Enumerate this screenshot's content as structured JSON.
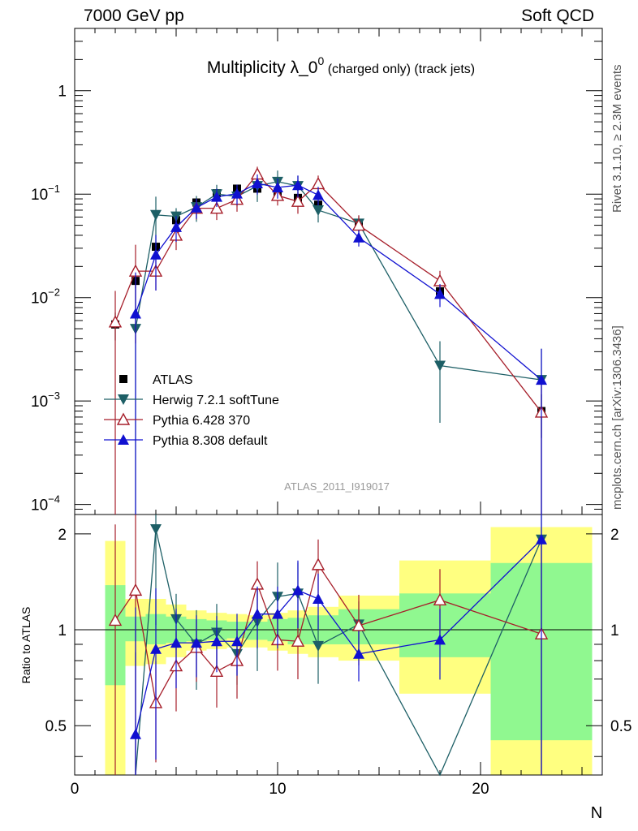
{
  "header": {
    "left": "7000 GeV pp",
    "right": "Soft QCD"
  },
  "side_text": {
    "rivet": "Rivet 3.1.10, ≥ 2.3M events",
    "mcplots": "mcplots.cern.ch [arXiv:1306.3436]"
  },
  "chart_data": {
    "type": "scatter",
    "title_main": "Multiplicity λ_0",
    "title_sup": "0",
    "title_sub": " (charged only) (track jets)",
    "watermark": "ATLAS_2011_I919017",
    "xlabel": "N",
    "ratio_ylabel": "Ratio to ATLAS",
    "xlim": [
      0,
      26
    ],
    "ylim": [
      8e-05,
      4
    ],
    "ratio_ylim": [
      0.35,
      2.3
    ],
    "x_ticks": [
      "0",
      "10",
      "20"
    ],
    "y_ticks": [
      {
        "base": "10",
        "exp": "−4"
      },
      {
        "base": "10",
        "exp": "−3"
      },
      {
        "base": "10",
        "exp": "−2"
      },
      {
        "base": "10",
        "exp": "−1"
      },
      {
        "base": "1",
        "exp": ""
      }
    ],
    "ratio_ticks": [
      "0.5",
      "1",
      "2"
    ],
    "series": [
      {
        "name": "ATLAS",
        "color": "#000000",
        "marker": "square",
        "x": [
          2,
          3,
          4,
          5,
          6,
          7,
          8,
          9,
          10,
          11,
          12,
          14,
          18,
          23
        ],
        "y": [
          0.0055,
          0.0145,
          0.031,
          0.056,
          0.083,
          0.102,
          0.113,
          0.113,
          0.104,
          0.092,
          0.079,
          0.05,
          0.0115,
          0.0008
        ],
        "err": [
          0.3,
          0.15,
          0.1,
          0.08,
          0.06,
          0.06,
          0.06,
          0.05,
          0.05,
          0.07,
          0.08,
          0.09,
          0.15,
          0.45
        ],
        "band_inner": [
          [
            1.38,
            1.33
          ],
          [
            1.1,
            1.08
          ],
          [
            1.12,
            1.1
          ],
          [
            1.1,
            1.09
          ],
          [
            1.08,
            1.08
          ],
          [
            1.07,
            1.07
          ],
          [
            1.06,
            1.06
          ],
          [
            1.06,
            1.07
          ],
          [
            1.08,
            1.08
          ],
          [
            1.09,
            1.1
          ],
          [
            1.11,
            1.1
          ],
          [
            1.16,
            1.1
          ],
          [
            1.3,
            1.18
          ],
          [
            1.62,
            1.55
          ]
        ],
        "band_outer": [
          [
            1.9,
            2.05
          ],
          [
            1.25,
            1.23
          ],
          [
            1.25,
            1.22
          ],
          [
            1.2,
            1.18
          ],
          [
            1.15,
            1.14
          ],
          [
            1.13,
            1.13
          ],
          [
            1.12,
            1.12
          ],
          [
            1.11,
            1.12
          ],
          [
            1.13,
            1.14
          ],
          [
            1.15,
            1.16
          ],
          [
            1.18,
            1.18
          ],
          [
            1.28,
            1.2
          ],
          [
            1.65,
            1.37
          ],
          [
            2.1,
            2.0
          ]
        ]
      },
      {
        "name": "Herwig 7.2.1 softTune",
        "color": "#1d5f66",
        "marker": "tri-down",
        "x": [
          3,
          4,
          5,
          6,
          7,
          8,
          9,
          10,
          11,
          12,
          14,
          18,
          23
        ],
        "y": [
          0.005,
          0.063,
          0.061,
          0.075,
          0.1,
          0.095,
          0.12,
          0.132,
          0.12,
          0.07,
          0.052,
          0.0022,
          0.0016
        ],
        "err": [
          1.5,
          0.5,
          0.2,
          0.28,
          0.23,
          0.2,
          0.3,
          0.28,
          0.25,
          0.24,
          0.18,
          0.72,
          1.0
        ],
        "ratio": [
          0.34,
          2.07,
          1.08,
          0.9,
          0.98,
          0.84,
          1.06,
          1.27,
          1.3,
          0.89,
          1.04,
          0.19,
          1.92
        ]
      },
      {
        "name": "Pythia 6.428 370",
        "color": "#a61e2a",
        "marker": "tri-up-open",
        "x": [
          2,
          3,
          4,
          5,
          6,
          7,
          8,
          9,
          10,
          11,
          12,
          14,
          18,
          23
        ],
        "y": [
          0.0058,
          0.018,
          0.018,
          0.04,
          0.073,
          0.073,
          0.089,
          0.156,
          0.097,
          0.085,
          0.126,
          0.05,
          0.0145,
          0.00078
        ],
        "err": [
          1.0,
          0.8,
          0.35,
          0.28,
          0.22,
          0.23,
          0.24,
          0.18,
          0.2,
          0.24,
          0.2,
          0.25,
          0.25,
          1.0
        ],
        "ratio": [
          1.07,
          1.33,
          0.59,
          0.77,
          0.88,
          0.74,
          0.8,
          1.39,
          0.93,
          0.92,
          1.6,
          1.03,
          1.24,
          0.97
        ]
      },
      {
        "name": "Pythia 8.308 default",
        "color": "#1010d0",
        "marker": "tri-up",
        "x": [
          3,
          4,
          5,
          6,
          7,
          8,
          9,
          10,
          11,
          12,
          14,
          18,
          23
        ],
        "y": [
          0.007,
          0.026,
          0.048,
          0.074,
          0.094,
          0.101,
          0.127,
          0.116,
          0.122,
          0.098,
          0.038,
          0.0108,
          0.0016
        ],
        "err": [
          1.5,
          0.55,
          0.28,
          0.22,
          0.2,
          0.22,
          0.22,
          0.22,
          0.24,
          0.2,
          0.18,
          0.25,
          1.0
        ],
        "ratio": [
          0.47,
          0.87,
          0.91,
          0.91,
          0.92,
          0.92,
          1.12,
          1.12,
          1.33,
          1.25,
          0.84,
          0.93,
          1.92
        ]
      }
    ]
  }
}
